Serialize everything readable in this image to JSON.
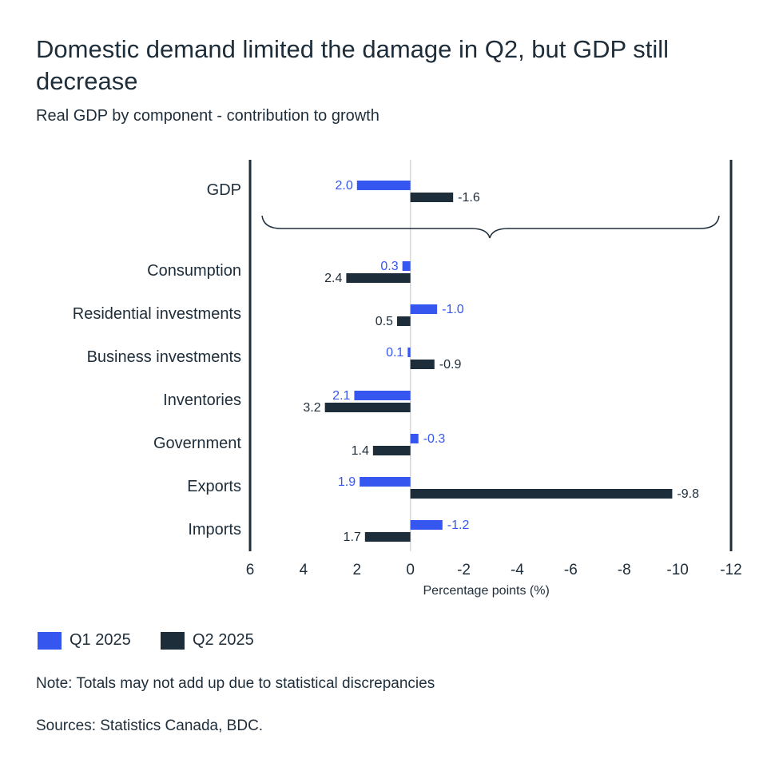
{
  "title": "Domestic demand limited the damage in Q2, but GDP still decrease",
  "subtitle": "Real GDP by component - contribution to growth",
  "note": "Note: Totals may not add up due to statistical discrepancies",
  "sources": "Sources: Statistics Canada, BDC.",
  "colors": {
    "q1": "#3656f0",
    "q2": "#1e2d3a"
  },
  "chart_data": {
    "type": "bar",
    "orientation": "horizontal",
    "x_reversed": true,
    "categories": [
      "GDP",
      "Consumption",
      "Residential investments",
      "Business investments",
      "Inventories",
      "Government",
      "Exports",
      "Imports"
    ],
    "series": [
      {
        "name": "Q1 2025",
        "values": [
          2.0,
          0.3,
          -1.0,
          0.1,
          2.1,
          -0.3,
          1.9,
          -1.2
        ]
      },
      {
        "name": "Q2 2025",
        "values": [
          -1.6,
          2.4,
          0.5,
          -0.9,
          3.2,
          1.4,
          -9.8,
          1.7
        ]
      }
    ],
    "xlabel": "Percentage points (%)",
    "xlim": [
      6,
      -12
    ],
    "xticks": [
      6,
      4,
      2,
      0,
      -2,
      -4,
      -6,
      -8,
      -10,
      -12
    ],
    "xtick_labels": [
      "6",
      "4",
      "2",
      "0",
      "-2",
      "-4",
      "-6",
      "-8",
      "-10",
      "-12"
    ],
    "value_labels": [
      [
        "2.0",
        "0.3",
        "-1.0",
        "0.1",
        "2.1",
        "-0.3",
        "1.9",
        "-1.2"
      ],
      [
        "-1.6",
        "2.4",
        "0.5",
        "-0.9",
        "3.2",
        "1.4",
        "-9.8",
        "1.7"
      ]
    ],
    "legend": "bottom-left"
  }
}
